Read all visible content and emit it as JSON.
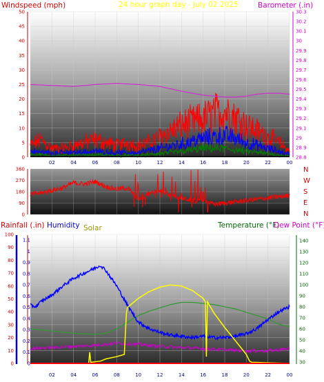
{
  "header": {
    "title": "24 hour graph day - July 02 2025",
    "left_label": "Windspeed (mph)",
    "right_label": "Barometer (.in)"
  },
  "compass": [
    "N",
    "W",
    "S",
    "E",
    "N"
  ],
  "bottom_labels": {
    "rainfall": "Rainfall (.in)",
    "humidity": "Humidity",
    "solar": "Solar",
    "temperature": "Temperature (°F)",
    "dewpoint": "Dew Point (°F)"
  },
  "colors": {
    "title": "#ffff00",
    "wind_label": "#cc0000",
    "barometer_label": "#cc00cc",
    "wind_gust": "#ff0000",
    "wind_avg_blue": "#0000ff",
    "wind_green": "#008000",
    "barometer": "#cc33cc",
    "direction": "#ff0000",
    "humidity": "#0000ff",
    "temperature": "#339933",
    "dewpoint": "#cc00cc",
    "solar": "#ffff00",
    "rain": "#ff0000"
  },
  "chart_data": [
    {
      "type": "line",
      "name_hint": "wind-baro",
      "x_ticks": [
        "02",
        "04",
        "06",
        "08",
        "10",
        "12",
        "14",
        "16",
        "18",
        "20",
        "22",
        "00"
      ],
      "y_left": {
        "ticks": [
          0,
          5,
          10,
          15,
          20,
          25,
          30,
          35,
          40,
          45,
          50
        ],
        "range": [
          0,
          50
        ]
      },
      "y_right": {
        "ticks": [
          28.8,
          28.9,
          29,
          29.1,
          29.2,
          29.3,
          29.4,
          29.5,
          29.6,
          29.7,
          29.8,
          29.9,
          30,
          30.1,
          30.2,
          30.3
        ],
        "range": [
          28.8,
          30.3
        ]
      },
      "series": [
        {
          "key": "barometer",
          "x": [
            0,
            2,
            4,
            6,
            8,
            10,
            12,
            14,
            15,
            16,
            17,
            18,
            19,
            20,
            21,
            22,
            23,
            24
          ],
          "values": [
            29.55,
            29.54,
            29.53,
            29.55,
            29.56,
            29.55,
            29.53,
            29.48,
            29.46,
            29.44,
            29.43,
            29.42,
            29.42,
            29.43,
            29.45,
            29.46,
            29.46,
            29.45
          ]
        },
        {
          "key": "gust_envelope",
          "x": [
            0,
            1,
            2,
            3,
            4,
            5,
            6,
            7,
            8,
            9,
            10,
            11,
            12,
            13,
            14,
            15,
            16,
            17,
            18,
            19,
            20,
            21,
            22,
            23,
            24
          ],
          "values": [
            4,
            6,
            3,
            3,
            4,
            5,
            6,
            5,
            4,
            5,
            4,
            5,
            7,
            9,
            11,
            12,
            13,
            15,
            16,
            14,
            11,
            9,
            7,
            5,
            2
          ]
        },
        {
          "key": "average_envelope",
          "x": [
            0,
            2,
            4,
            6,
            8,
            10,
            12,
            14,
            16,
            17,
            18,
            19,
            20,
            22,
            24
          ],
          "values": [
            2,
            1.5,
            1.5,
            2,
            1.5,
            1.5,
            3,
            4.5,
            6.5,
            7,
            7.5,
            6.5,
            5,
            3,
            1
          ]
        },
        {
          "key": "low_envelope",
          "x": [
            0,
            2,
            4,
            6,
            8,
            10,
            12,
            14,
            16,
            18,
            20,
            22,
            24
          ],
          "values": [
            1,
            0.6,
            0.6,
            0.8,
            0.6,
            0.6,
            1.2,
            2,
            3,
            3,
            2,
            1.2,
            0.4
          ]
        }
      ]
    },
    {
      "type": "line",
      "name_hint": "wind-direction",
      "y_ticks": [
        0,
        90,
        180,
        270,
        360
      ],
      "range": [
        0,
        360
      ],
      "series": [
        {
          "key": "direction",
          "x": [
            0,
            1,
            2,
            3,
            4,
            5,
            6,
            7,
            8,
            9,
            10,
            11,
            12,
            13,
            14,
            15,
            16,
            17,
            18,
            19,
            20,
            21,
            22,
            23,
            24
          ],
          "values": [
            160,
            170,
            190,
            210,
            250,
            240,
            260,
            220,
            200,
            210,
            120,
            170,
            190,
            150,
            130,
            110,
            110,
            80,
            90,
            100,
            110,
            120,
            130,
            140,
            150
          ]
        }
      ]
    },
    {
      "type": "line",
      "name_hint": "weather",
      "x_ticks": [
        "02",
        "04",
        "06",
        "08",
        "10",
        "12",
        "14",
        "16",
        "18",
        "20",
        "22",
        "00"
      ],
      "rain_axis": {
        "ticks": [
          0,
          0.1,
          0.2,
          0.3,
          0.4,
          0.5,
          0.6,
          0.7,
          0.8,
          0.9,
          1,
          1.1
        ],
        "range": [
          0,
          1.15
        ]
      },
      "humidity_axis": {
        "ticks": [
          0,
          10,
          20,
          30,
          40,
          50,
          60,
          70,
          80,
          90,
          100
        ],
        "range": [
          0,
          100
        ]
      },
      "temp_axis": {
        "ticks": [
          30,
          40,
          50,
          60,
          70,
          80,
          90,
          100,
          110,
          120,
          130,
          140
        ],
        "range": [
          28,
          145
        ]
      },
      "series": [
        {
          "key": "humidity",
          "x": [
            0,
            0.5,
            1,
            2,
            3,
            4,
            5,
            6,
            6.5,
            7,
            8,
            9,
            10,
            11,
            12,
            13,
            14,
            15,
            16,
            17,
            18,
            19,
            20,
            21,
            22,
            23,
            24
          ],
          "values": [
            45,
            44,
            48,
            53,
            60,
            66,
            70,
            74,
            76,
            72,
            60,
            45,
            32,
            27,
            24,
            22,
            21,
            20,
            21,
            20,
            20,
            21,
            23,
            27,
            34,
            40,
            44
          ]
        },
        {
          "key": "temperature",
          "x": [
            0,
            2,
            4,
            6,
            7,
            8,
            9,
            10,
            11,
            12,
            13,
            14,
            15,
            16,
            17,
            18,
            19,
            20,
            21,
            22,
            23,
            24
          ],
          "values": [
            60,
            58,
            56,
            55,
            56,
            60,
            66,
            72,
            76,
            79,
            82,
            84,
            84,
            83,
            82,
            80,
            78,
            75,
            72,
            69,
            64,
            62
          ]
        },
        {
          "key": "dewpoint",
          "x": [
            0,
            2,
            4,
            6,
            8,
            10,
            12,
            14,
            16,
            18,
            20,
            22,
            24
          ],
          "values": [
            42,
            43,
            44,
            45,
            47,
            46,
            44,
            43,
            42,
            41,
            40,
            40,
            42
          ]
        },
        {
          "key": "solar",
          "x": [
            0,
            5.4,
            5.5,
            5.6,
            6.5,
            7,
            8,
            8.7,
            8.9,
            9,
            10,
            11,
            12,
            13,
            14,
            15,
            16,
            16.2,
            16.3,
            16.4,
            17,
            18,
            19,
            20,
            20.3,
            20.5,
            24
          ],
          "values": [
            0,
            0,
            0.1,
            0.01,
            0.02,
            0.04,
            0.06,
            0.08,
            0.45,
            0.5,
            0.58,
            0.64,
            0.68,
            0.7,
            0.69,
            0.65,
            0.58,
            0.55,
            0.06,
            0.55,
            0.45,
            0.32,
            0.2,
            0.08,
            0.02,
            0.01,
            0
          ]
        },
        {
          "key": "rain",
          "x": [
            0,
            24
          ],
          "values": [
            0,
            0
          ]
        }
      ]
    }
  ]
}
